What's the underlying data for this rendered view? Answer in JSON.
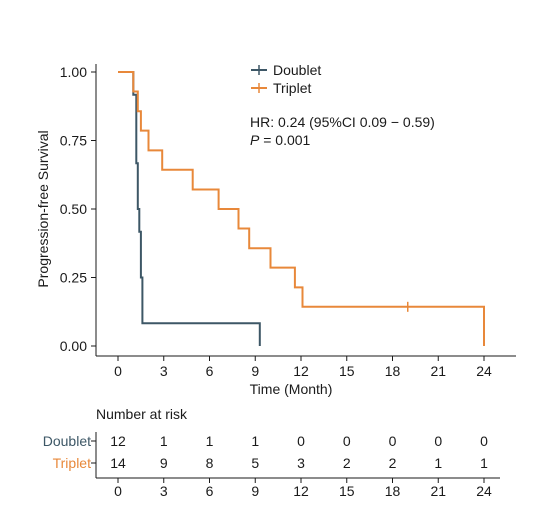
{
  "chart_data": {
    "type": "line",
    "subtype": "kaplan-meier",
    "xlabel": "Time (Month)",
    "ylabel": "Progression-free Survival",
    "x_ticks": [
      0,
      3,
      6,
      9,
      12,
      15,
      18,
      21,
      24
    ],
    "y_ticks": [
      "0.00",
      "0.25",
      "0.50",
      "0.75",
      "1.00"
    ],
    "y_tick_values": [
      0,
      0.25,
      0.5,
      0.75,
      1.0
    ],
    "xlim": [
      -1,
      26
    ],
    "ylim": [
      0,
      1
    ],
    "grid": false,
    "legend_position": "top-center",
    "annotation": {
      "hr_text": "HR: 0.24 (95%CI 0.09 − 0.59)",
      "p_label": "P",
      "p_value": " = 0.001"
    },
    "series": [
      {
        "name": "Doublet",
        "color": "#3d5766",
        "steps": [
          [
            0,
            1.0
          ],
          [
            1.0,
            0.917
          ],
          [
            1.2,
            0.667
          ],
          [
            1.3,
            0.5
          ],
          [
            1.4,
            0.417
          ],
          [
            1.5,
            0.25
          ],
          [
            1.6,
            0.083
          ],
          [
            9.3,
            0.083
          ],
          [
            9.3,
            0.0
          ]
        ],
        "censor": []
      },
      {
        "name": "Triplet",
        "color": "#e8883a",
        "steps": [
          [
            0,
            1.0
          ],
          [
            1.0,
            0.929
          ],
          [
            1.3,
            0.857
          ],
          [
            1.5,
            0.786
          ],
          [
            2.0,
            0.714
          ],
          [
            2.9,
            0.643
          ],
          [
            4.9,
            0.571
          ],
          [
            6.6,
            0.5
          ],
          [
            7.9,
            0.429
          ],
          [
            8.6,
            0.357
          ],
          [
            10.0,
            0.286
          ],
          [
            11.6,
            0.214
          ],
          [
            12.1,
            0.143
          ],
          [
            24.0,
            0.143
          ],
          [
            24.0,
            0.0
          ]
        ],
        "censor": [
          [
            19.0,
            0.143
          ]
        ]
      }
    ],
    "risk_table": {
      "title": "Number at risk",
      "times": [
        0,
        3,
        6,
        9,
        12,
        15,
        18,
        21,
        24
      ],
      "rows": [
        {
          "name": "Doublet",
          "color": "#3d5766",
          "values": [
            12,
            1,
            1,
            1,
            0,
            0,
            0,
            0,
            0
          ]
        },
        {
          "name": "Triplet",
          "color": "#e8883a",
          "values": [
            14,
            9,
            8,
            5,
            3,
            2,
            2,
            1,
            1
          ]
        }
      ]
    }
  }
}
